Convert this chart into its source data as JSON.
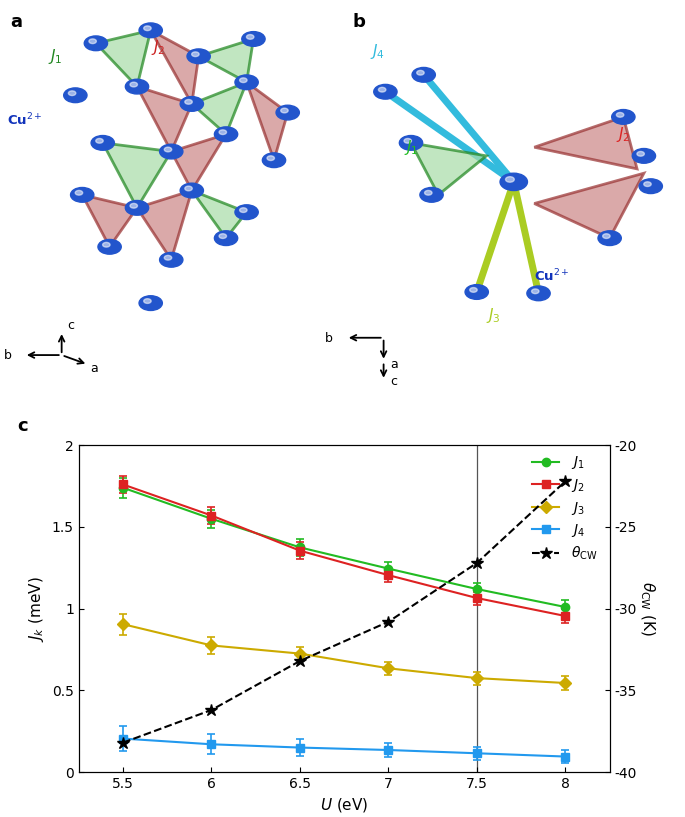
{
  "U_values": [
    5.5,
    6.0,
    6.5,
    7.0,
    7.5,
    8.0
  ],
  "J1_values": [
    1.74,
    1.55,
    1.375,
    1.245,
    1.12,
    1.01
  ],
  "J1_err": [
    0.06,
    0.055,
    0.05,
    0.04,
    0.04,
    0.04
  ],
  "J2_values": [
    1.76,
    1.57,
    1.355,
    1.205,
    1.065,
    0.955
  ],
  "J2_err": [
    0.05,
    0.05,
    0.05,
    0.04,
    0.04,
    0.04
  ],
  "J3_values": [
    0.905,
    0.775,
    0.725,
    0.635,
    0.575,
    0.545
  ],
  "J3_err": [
    0.065,
    0.05,
    0.04,
    0.04,
    0.04,
    0.04
  ],
  "J4_values": [
    0.205,
    0.17,
    0.15,
    0.135,
    0.115,
    0.095
  ],
  "J4_err": [
    0.075,
    0.06,
    0.05,
    0.04,
    0.04,
    0.04
  ],
  "theta_values": [
    -38.2,
    -36.2,
    -33.2,
    -30.8,
    -27.2,
    -22.2
  ],
  "J1_color": "#22bb22",
  "J2_color": "#dd2222",
  "J3_color": "#ccaa00",
  "J4_color": "#2299ee",
  "theta_color": "#000000",
  "vline_x": 7.5,
  "ylim_left": [
    0,
    2
  ],
  "ylim_right": [
    -40,
    -20
  ],
  "panel_a_label": "a",
  "panel_b_label": "b",
  "panel_c_label": "c",
  "green_face": "#aaddaa",
  "green_edge": "#228822",
  "red_face": "#cc8888",
  "red_edge": "#993333",
  "blue_sphere": "#2255cc",
  "j4_bond_color": "#33bbdd",
  "j3_bond_color": "#aacc22",
  "fig_width": 6.85,
  "fig_height": 8.17
}
